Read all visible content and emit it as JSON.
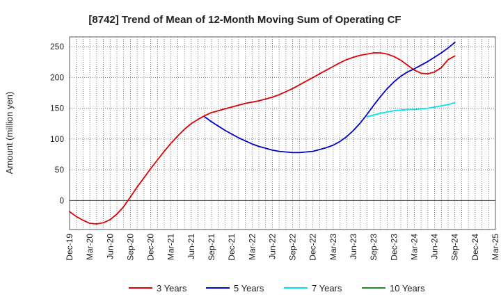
{
  "chart_data": {
    "type": "line",
    "title": "[8742]  Trend of Mean of 12-Month Moving Sum of Operating CF",
    "xlabel": "",
    "ylabel": "Amount (million yen)",
    "ylim": [
      -47,
      266
    ],
    "yticks": [
      0,
      50,
      100,
      150,
      200,
      250
    ],
    "grid": true,
    "x_index_max": 63,
    "xtick_labels": [
      "Dec-19",
      "Mar-20",
      "Jun-20",
      "Sep-20",
      "Dec-20",
      "Mar-21",
      "Jun-21",
      "Sep-21",
      "Dec-21",
      "Mar-22",
      "Jun-22",
      "Sep-22",
      "Dec-22",
      "Mar-23",
      "Jun-23",
      "Sep-23",
      "Dec-23",
      "Mar-24",
      "Jun-24",
      "Sep-24",
      "Dec-24",
      "Mar-25"
    ],
    "legend_position": "bottom",
    "series": [
      {
        "name": "3 Years",
        "color": "#dd0000",
        "points": [
          [
            0,
            -18
          ],
          [
            1,
            -26
          ],
          [
            2,
            -32
          ],
          [
            3,
            -37
          ],
          [
            4,
            -38
          ],
          [
            5,
            -36
          ],
          [
            6,
            -31
          ],
          [
            7,
            -22
          ],
          [
            8,
            -10
          ],
          [
            9,
            6
          ],
          [
            10,
            22
          ],
          [
            11,
            37
          ],
          [
            12,
            52
          ],
          [
            13,
            66
          ],
          [
            14,
            80
          ],
          [
            15,
            93
          ],
          [
            16,
            105
          ],
          [
            17,
            116
          ],
          [
            18,
            125
          ],
          [
            19,
            132
          ],
          [
            20,
            138
          ],
          [
            21,
            143
          ],
          [
            22,
            146
          ],
          [
            23,
            149
          ],
          [
            24,
            152
          ],
          [
            25,
            155
          ],
          [
            26,
            158
          ],
          [
            27,
            160
          ],
          [
            28,
            162
          ],
          [
            29,
            165
          ],
          [
            30,
            168
          ],
          [
            31,
            172
          ],
          [
            32,
            177
          ],
          [
            33,
            182
          ],
          [
            34,
            188
          ],
          [
            35,
            194
          ],
          [
            36,
            200
          ],
          [
            37,
            206
          ],
          [
            38,
            212
          ],
          [
            39,
            218
          ],
          [
            40,
            224
          ],
          [
            41,
            229
          ],
          [
            42,
            233
          ],
          [
            43,
            236
          ],
          [
            44,
            238
          ],
          [
            45,
            240
          ],
          [
            46,
            240
          ],
          [
            47,
            238
          ],
          [
            48,
            234
          ],
          [
            49,
            228
          ],
          [
            50,
            220
          ],
          [
            51,
            212
          ],
          [
            52,
            207
          ],
          [
            53,
            206
          ],
          [
            54,
            209
          ],
          [
            55,
            216
          ],
          [
            56,
            229
          ],
          [
            57,
            235
          ]
        ]
      },
      {
        "name": "5 Years",
        "color": "#0000cc",
        "points": [
          [
            20,
            136
          ],
          [
            21,
            128
          ],
          [
            22,
            121
          ],
          [
            23,
            114
          ],
          [
            24,
            108
          ],
          [
            25,
            102
          ],
          [
            26,
            97
          ],
          [
            27,
            92
          ],
          [
            28,
            88
          ],
          [
            29,
            85
          ],
          [
            30,
            82
          ],
          [
            31,
            80
          ],
          [
            32,
            79
          ],
          [
            33,
            78
          ],
          [
            34,
            78
          ],
          [
            35,
            79
          ],
          [
            36,
            80
          ],
          [
            37,
            83
          ],
          [
            38,
            86
          ],
          [
            39,
            90
          ],
          [
            40,
            96
          ],
          [
            41,
            104
          ],
          [
            42,
            114
          ],
          [
            43,
            126
          ],
          [
            44,
            140
          ],
          [
            45,
            155
          ],
          [
            46,
            169
          ],
          [
            47,
            182
          ],
          [
            48,
            193
          ],
          [
            49,
            202
          ],
          [
            50,
            209
          ],
          [
            51,
            214
          ],
          [
            52,
            220
          ],
          [
            53,
            226
          ],
          [
            54,
            233
          ],
          [
            55,
            240
          ],
          [
            56,
            248
          ],
          [
            57,
            257
          ]
        ]
      },
      {
        "name": "7 Years",
        "color": "#00e5ee",
        "points": [
          [
            44,
            136
          ],
          [
            45,
            139
          ],
          [
            46,
            142
          ],
          [
            47,
            144
          ],
          [
            48,
            146
          ],
          [
            49,
            147
          ],
          [
            50,
            148
          ],
          [
            51,
            148
          ],
          [
            52,
            149
          ],
          [
            53,
            150
          ],
          [
            54,
            152
          ],
          [
            55,
            154
          ],
          [
            56,
            156
          ],
          [
            57,
            159
          ]
        ]
      },
      {
        "name": "10 Years",
        "color": "#228b22",
        "points": []
      }
    ]
  }
}
